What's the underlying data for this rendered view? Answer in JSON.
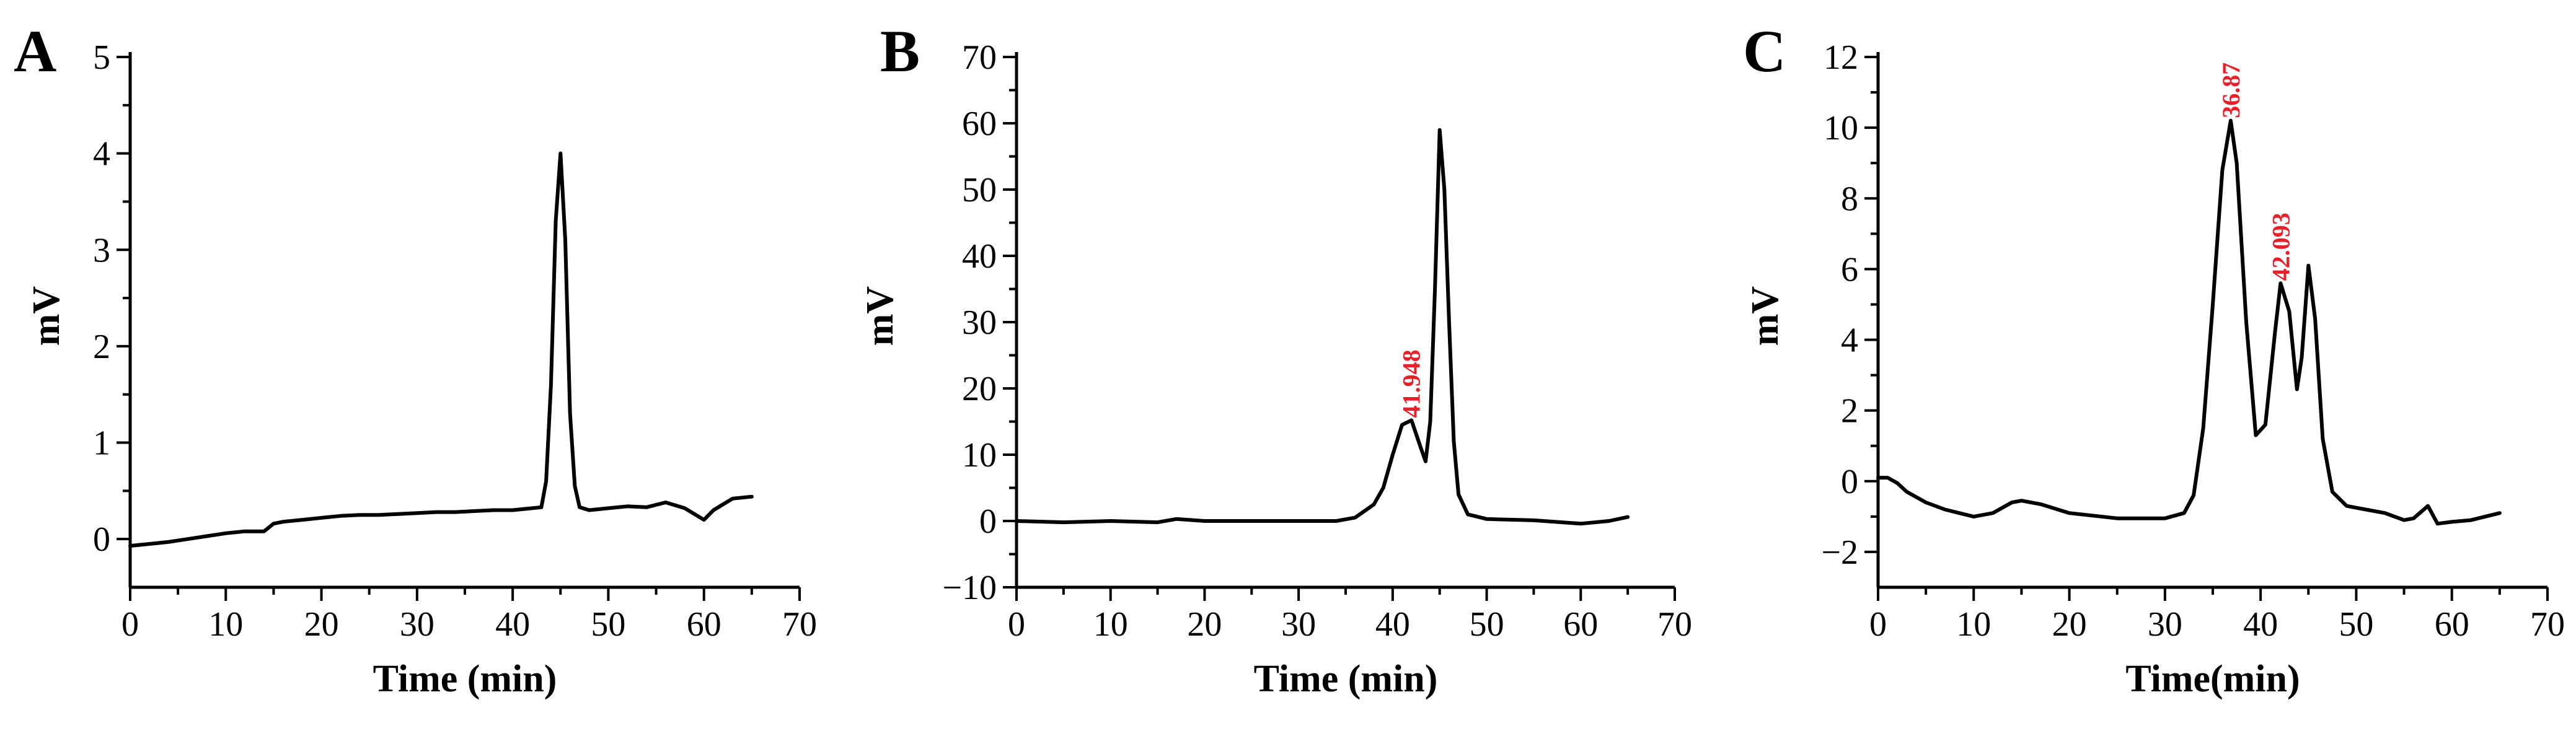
{
  "colors": {
    "trace": "#000000",
    "peak_label": "#e8202a",
    "axis": "#000000"
  },
  "chart_data": [
    {
      "type": "line",
      "panel": "A",
      "xlabel": "Time (min)",
      "ylabel": "mV",
      "xlim": [
        0,
        70
      ],
      "ylim": [
        -0.5,
        5
      ],
      "xticks": [
        0,
        10,
        20,
        30,
        40,
        50,
        60,
        70
      ],
      "yticks": [
        0,
        1,
        2,
        3,
        4,
        5
      ],
      "grid": false,
      "series": [
        {
          "x": [
            0,
            2,
            4,
            6,
            8,
            10,
            12,
            14,
            15,
            16,
            18,
            20,
            22,
            24,
            26,
            28,
            30,
            32,
            34,
            36,
            38,
            40,
            42,
            43,
            43.5,
            44,
            44.5,
            45,
            45.5,
            46,
            46.5,
            47,
            48,
            50,
            52,
            54,
            56,
            58,
            60,
            61,
            63,
            65
          ],
          "y": [
            -0.07,
            -0.05,
            -0.03,
            0.0,
            0.03,
            0.06,
            0.08,
            0.08,
            0.16,
            0.18,
            0.2,
            0.22,
            0.24,
            0.25,
            0.25,
            0.26,
            0.27,
            0.28,
            0.28,
            0.29,
            0.3,
            0.3,
            0.32,
            0.33,
            0.6,
            1.6,
            3.3,
            4.0,
            3.1,
            1.3,
            0.55,
            0.33,
            0.3,
            0.32,
            0.34,
            0.33,
            0.38,
            0.32,
            0.2,
            0.3,
            0.42,
            0.44
          ]
        }
      ],
      "annotations": []
    },
    {
      "type": "line",
      "panel": "B",
      "xlabel": "Time (min)",
      "ylabel": "mV",
      "xlim": [
        0,
        70
      ],
      "ylim": [
        -10,
        70
      ],
      "xticks": [
        0,
        10,
        20,
        30,
        40,
        50,
        60,
        70
      ],
      "yticks": [
        -10,
        0,
        10,
        20,
        30,
        40,
        50,
        60,
        70
      ],
      "grid": false,
      "series": [
        {
          "x": [
            0,
            5,
            10,
            15,
            17,
            20,
            25,
            30,
            34,
            36,
            37,
            38,
            39,
            40,
            41,
            42,
            43,
            43.5,
            44,
            44.5,
            45,
            45.5,
            46,
            46.5,
            47,
            48,
            50,
            55,
            60,
            63,
            65
          ],
          "y": [
            0,
            -0.2,
            0,
            -0.2,
            0.3,
            0,
            0,
            0,
            0,
            0.5,
            1.5,
            2.5,
            5,
            10,
            14.5,
            15.2,
            11,
            9,
            15,
            35,
            59,
            50,
            30,
            12,
            4,
            1,
            0.3,
            0.1,
            -0.4,
            0,
            0.6
          ]
        }
      ],
      "annotations": [
        {
          "text": "41.948",
          "x": 41.948,
          "y": 15.2
        }
      ]
    },
    {
      "type": "line",
      "panel": "C",
      "xlabel": "Time(min)",
      "ylabel": "mV",
      "xlim": [
        0,
        70
      ],
      "ylim": [
        -3,
        12
      ],
      "xticks": [
        0,
        10,
        20,
        30,
        40,
        50,
        60,
        70
      ],
      "yticks": [
        -2,
        0,
        2,
        4,
        6,
        8,
        10,
        12
      ],
      "grid": false,
      "series": [
        {
          "x": [
            0,
            1,
            2,
            3,
            5,
            7,
            10,
            12,
            14,
            15,
            17,
            20,
            25,
            30,
            32,
            33,
            34,
            35,
            36,
            36.87,
            37.5,
            38.5,
            39.5,
            40.5,
            41.5,
            42.093,
            43,
            43.8,
            44.3,
            45,
            45.7,
            46.5,
            47.5,
            49,
            51,
            53,
            55,
            56,
            57.5,
            58.5,
            60,
            62,
            65
          ],
          "y": [
            0.1,
            0.1,
            -0.05,
            -0.3,
            -0.6,
            -0.8,
            -1.0,
            -0.9,
            -0.6,
            -0.55,
            -0.65,
            -0.9,
            -1.05,
            -1.05,
            -0.9,
            -0.4,
            1.5,
            5.0,
            8.8,
            10.2,
            9.0,
            4.5,
            1.3,
            1.6,
            4.2,
            5.6,
            4.8,
            2.6,
            3.5,
            6.1,
            4.6,
            1.2,
            -0.3,
            -0.7,
            -0.8,
            -0.9,
            -1.1,
            -1.05,
            -0.7,
            -1.2,
            -1.15,
            -1.1,
            -0.9
          ]
        }
      ],
      "annotations": [
        {
          "text": "36.87",
          "x": 36.87,
          "y": 10.2
        },
        {
          "text": "42.093",
          "x": 42.093,
          "y": 5.6
        }
      ]
    }
  ]
}
